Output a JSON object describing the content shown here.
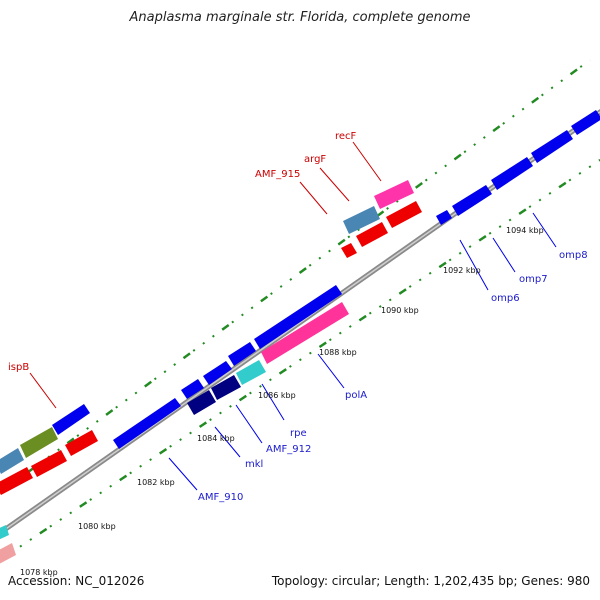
{
  "title": "Anaplasma marginale str. Florida, complete genome",
  "accession": "Accession: NC_012026",
  "summary": "Topology: circular; Length: 1,202,435 bp; Genes: 980",
  "colors": {
    "forward_gene": "#0000ee",
    "reverse_gene": "#ee0000",
    "pink_gene": "#ff33aa",
    "cyan_gene": "#33cccc",
    "steel_gene": "#4a86b4",
    "olive_gene": "#6b8e23",
    "navy_gene": "#000080",
    "salmon_gene": "#f0a0a0",
    "backbone": "#999999",
    "tick": "#228b22",
    "gene_label": "#1a1acc",
    "red_label": "#cc0000"
  },
  "scale_labels": [
    "1078 kbp",
    "1080 kbp",
    "1082 kbp",
    "1084 kbp",
    "1086 kbp",
    "1088 kbp",
    "1090 kbp",
    "1092 kbp",
    "1094 kbp"
  ],
  "gene_labels": {
    "amf910": "AMF_910",
    "mkl": "mkl",
    "amf912": "AMF_912",
    "rpe": "rpe",
    "pola": "polA",
    "omp6": "omp6",
    "omp7": "omp7",
    "omp8": "omp8",
    "ispb": "ispB",
    "amf915": "AMF_915",
    "argf": "argF",
    "recf": "recF"
  }
}
